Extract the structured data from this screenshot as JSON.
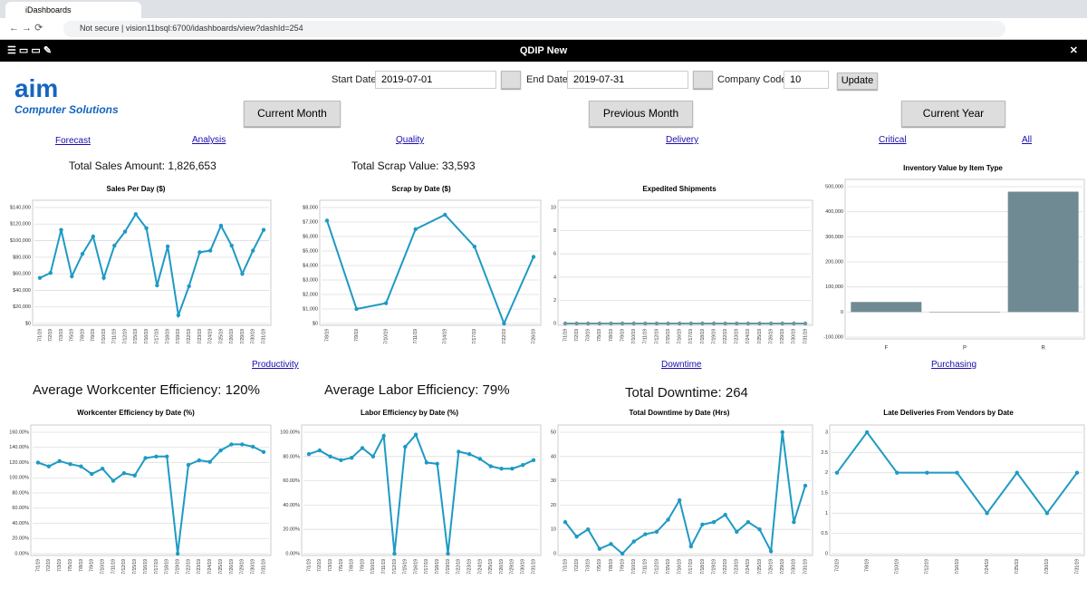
{
  "browser": {
    "tab": "iDashboards",
    "security": "Not secure",
    "url": "vision11bsql:6700/idashboards/view?dashId=254"
  },
  "toolbar": {
    "title": "QDIP New"
  },
  "logo": {
    "name": "aim",
    "subtitle": "Computer Solutions"
  },
  "filters": {
    "start_label": "Start Date",
    "start_value": "2019-07-01",
    "end_label": "End Date",
    "end_value": "2019-07-31",
    "company_label": "Company Code",
    "company_value": "10",
    "update": "Update"
  },
  "buttons": [
    "Current Month",
    "Previous Month",
    "Current Year"
  ],
  "links": [
    "Forecast",
    "Analysis",
    "Quality",
    "Delivery",
    "Critical",
    "All",
    "Productivity",
    "Downtime",
    "Purchasing"
  ],
  "kpis": [
    "Total Sales Amount: 1,826,653",
    "Total Scrap Value: 33,593",
    "Average Workcenter Efficiency: 120%",
    "Average Labor Efficiency: 79%",
    "Total Downtime: 264"
  ],
  "chart_data": [
    {
      "type": "line",
      "title": "Sales Per Day ($)",
      "color": "#1e9ac4",
      "grid": true,
      "categories": [
        "7/1/19",
        "7/2/19",
        "7/3/19",
        "7/5/19",
        "7/8/19",
        "7/9/19",
        "7/10/19",
        "7/11/19",
        "7/12/19",
        "7/15/19",
        "7/16/19",
        "7/17/19",
        "7/18/19",
        "7/19/19",
        "7/22/19",
        "7/23/19",
        "7/24/19",
        "7/25/19",
        "7/26/19",
        "7/29/19",
        "7/30/19",
        "7/31/19"
      ],
      "values": [
        55000,
        61000,
        113000,
        57000,
        84000,
        105000,
        55000,
        94000,
        111000,
        132000,
        115000,
        46000,
        93000,
        10000,
        45000,
        86000,
        88000,
        118000,
        94000,
        60000,
        88000,
        113000
      ],
      "ylim": [
        0,
        140000
      ],
      "yticks": [
        {
          "value": 0,
          "label": "$0"
        },
        {
          "value": 20000,
          "label": "$20,000"
        },
        {
          "value": 40000,
          "label": "$40,000"
        },
        {
          "value": 60000,
          "label": "$60,000"
        },
        {
          "value": 80000,
          "label": "$80,000"
        },
        {
          "value": 100000,
          "label": "$100,000"
        },
        {
          "value": 120000,
          "label": "$120,000"
        },
        {
          "value": 140000,
          "label": "$140,000"
        }
      ]
    },
    {
      "type": "line",
      "title": "Scrap by Date ($)",
      "color": "#1e9ac4",
      "grid": true,
      "categories": [
        "7/8/19",
        "7/9/19",
        "7/10/19",
        "7/11/19",
        "7/14/19",
        "7/17/19",
        "7/22/19",
        "7/26/19"
      ],
      "values": [
        7100,
        1000,
        1400,
        6500,
        7500,
        5300,
        0,
        4600
      ],
      "ylim": [
        0,
        8000
      ],
      "yticks": [
        {
          "value": 0,
          "label": "$0"
        },
        {
          "value": 1000,
          "label": "$1,000"
        },
        {
          "value": 2000,
          "label": "$2,000"
        },
        {
          "value": 3000,
          "label": "$3,000"
        },
        {
          "value": 4000,
          "label": "$4,000"
        },
        {
          "value": 5000,
          "label": "$5,000"
        },
        {
          "value": 6000,
          "label": "$6,000"
        },
        {
          "value": 7000,
          "label": "$7,000"
        },
        {
          "value": 8000,
          "label": "$8,000"
        }
      ]
    },
    {
      "type": "line",
      "title": "Expedited Shipments",
      "color": "#6b96a3",
      "grid": true,
      "categories": [
        "7/1/19",
        "7/2/19",
        "7/3/19",
        "7/5/19",
        "7/8/19",
        "7/9/19",
        "7/10/19",
        "7/11/19",
        "7/12/19",
        "7/15/19",
        "7/16/19",
        "7/17/19",
        "7/18/19",
        "7/19/19",
        "7/22/19",
        "7/23/19",
        "7/24/19",
        "7/25/19",
        "7/26/19",
        "7/29/19",
        "7/30/19",
        "7/31/19"
      ],
      "values": [
        0,
        0,
        0,
        0,
        0,
        0,
        0,
        0,
        0,
        0,
        0,
        0,
        0,
        0,
        0,
        0,
        0,
        0,
        0,
        0,
        0,
        0
      ],
      "ylim": [
        0,
        10
      ],
      "yticks": [
        0,
        2,
        4,
        6,
        8,
        10
      ]
    },
    {
      "type": "bar",
      "title": "Inventory Value by Item Type",
      "color": "#6f8a92",
      "grid": true,
      "categories": [
        "F",
        "P",
        "R"
      ],
      "values": [
        40000,
        1000,
        480000
      ],
      "ylim": [
        -100000,
        500000
      ],
      "yticks": [
        {
          "value": -100000,
          "label": "-100,000"
        },
        0,
        {
          "value": 100000,
          "label": "100,000"
        },
        {
          "value": 200000,
          "label": "200,000"
        },
        {
          "value": 300000,
          "label": "300,000"
        },
        {
          "value": 400000,
          "label": "400,000"
        },
        {
          "value": 500000,
          "label": "500,000"
        }
      ]
    },
    {
      "type": "line",
      "title": "Workcenter Efficiency by Date (%)",
      "color": "#1e9ac4",
      "grid": true,
      "categories": [
        "7/1/19",
        "7/2/19",
        "7/3/19",
        "7/5/19",
        "7/8/19",
        "7/9/19",
        "7/10/19",
        "7/11/19",
        "7/12/19",
        "7/15/19",
        "7/16/19",
        "7/17/19",
        "7/18/19",
        "7/19/19",
        "7/22/19",
        "7/23/19",
        "7/24/19",
        "7/25/19",
        "7/26/19",
        "7/29/19",
        "7/30/19",
        "7/31/19"
      ],
      "values": [
        120,
        115,
        122,
        118,
        115,
        105,
        112,
        96,
        106,
        103,
        126,
        128,
        128,
        0,
        117,
        123,
        121,
        136,
        144,
        144,
        141,
        134
      ],
      "ylim": [
        0,
        160
      ],
      "yticks": [
        {
          "value": 0,
          "label": "0.00%"
        },
        {
          "value": 20,
          "label": "20.00%"
        },
        {
          "value": 40,
          "label": "40.00%"
        },
        {
          "value": 60,
          "label": "60.00%"
        },
        {
          "value": 80,
          "label": "80.00%"
        },
        {
          "value": 100,
          "label": "100.00%"
        },
        {
          "value": 120,
          "label": "120.00%"
        },
        {
          "value": 140,
          "label": "140.00%"
        },
        {
          "value": 160,
          "label": "160.00%"
        }
      ]
    },
    {
      "type": "line",
      "title": "Labor Efficiency by Date (%)",
      "color": "#1e9ac4",
      "grid": true,
      "categories": [
        "7/1/19",
        "7/2/19",
        "7/3/19",
        "7/5/19",
        "7/8/19",
        "7/9/19",
        "7/10/19",
        "7/11/19",
        "7/12/19",
        "7/15/19",
        "7/16/19",
        "7/17/19",
        "7/18/19",
        "7/19/19",
        "7/22/19",
        "7/23/19",
        "7/24/19",
        "7/25/19",
        "7/26/19",
        "7/29/19",
        "7/30/19",
        "7/31/19"
      ],
      "values": [
        82,
        85,
        80,
        77,
        79,
        87,
        80,
        97,
        0,
        88,
        98,
        75,
        74,
        0,
        84,
        82,
        78,
        72,
        70,
        70,
        73,
        77
      ],
      "ylim": [
        0,
        100
      ],
      "yticks": [
        {
          "value": 0,
          "label": "0.00%"
        },
        {
          "value": 20,
          "label": "20.00%"
        },
        {
          "value": 40,
          "label": "40.00%"
        },
        {
          "value": 60,
          "label": "60.00%"
        },
        {
          "value": 80,
          "label": "80.00%"
        },
        {
          "value": 100,
          "label": "100.00%"
        }
      ]
    },
    {
      "type": "line",
      "title": "Total Downtime by Date (Hrs)",
      "color": "#1e9ac4",
      "grid": true,
      "categories": [
        "7/1/19",
        "7/2/19",
        "7/3/19",
        "7/5/19",
        "7/8/19",
        "7/9/19",
        "7/10/19",
        "7/11/19",
        "7/12/19",
        "7/15/19",
        "7/16/19",
        "7/17/19",
        "7/18/19",
        "7/19/19",
        "7/22/19",
        "7/23/19",
        "7/24/19",
        "7/25/19",
        "7/26/19",
        "7/29/19",
        "7/30/19",
        "7/31/19"
      ],
      "values": [
        13,
        7,
        10,
        2,
        4,
        0,
        5,
        8,
        9,
        14,
        22,
        3,
        12,
        13,
        16,
        9,
        13,
        10,
        1,
        50,
        13,
        28
      ],
      "ylim": [
        0,
        50
      ],
      "yticks": [
        0,
        10,
        20,
        30,
        40,
        50
      ]
    },
    {
      "type": "line",
      "title": "Late Deliveries From Vendors by Date",
      "color": "#1e9ac4",
      "grid": true,
      "categories": [
        "7/2/19",
        "7/8/19",
        "7/10/19",
        "7/12/19",
        "7/16/19",
        "7/24/19",
        "7/25/19",
        "7/30/19",
        "7/31/19"
      ],
      "values": [
        2,
        3,
        2,
        2,
        2,
        1,
        2,
        1,
        2
      ],
      "ylim": [
        0,
        3
      ],
      "yticks": [
        0,
        0.5,
        1,
        1.5,
        2,
        2.5,
        3
      ]
    }
  ]
}
